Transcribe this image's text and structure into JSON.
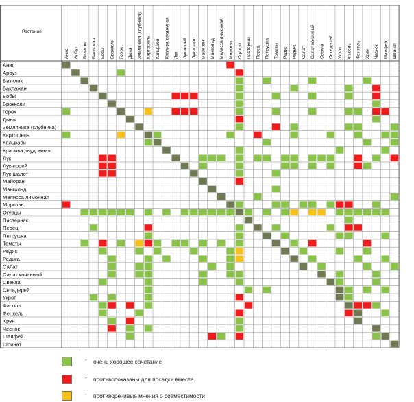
{
  "chart_data": {
    "type": "heatmap",
    "title": "Растения",
    "plants": [
      "Анис",
      "Арбуз",
      "Базилик",
      "Баклажан",
      "Бобы",
      "Брокколи",
      "Горох",
      "Дыня",
      "Земляника (клубника)",
      "Картофель",
      "Кольраби",
      "Крапива двудомная",
      "Лук",
      "Лук-порей",
      "Лук-шалот",
      "Майоран",
      "Мангольд",
      "Мелисса лимонная",
      "Морковь",
      "Огурцы",
      "Пастернак",
      "Перец",
      "Петрушка",
      "Томаты",
      "Редис",
      "Редька",
      "Салат",
      "Салат кочанный",
      "Свекла",
      "Сельдерей",
      "Укроп",
      "Фасоль",
      "Фенхель",
      "Хрен",
      "Чеснок",
      "Шалфей",
      "Шпинат"
    ],
    "cell_codes": {
      "G": "очень хорошее сочетание",
      "R": "противопоказаны для посадки вместе",
      "Y": "противоречивые мнения о совместимости",
      "D": "diagonal",
      ".": "no data"
    },
    "matrix": [
      "D.................R..................",
      ".D....G............R.................",
      "..D................G..G....G.....G...",
      "...D...............G.....G.....G..R..",
      "....D.......RRR....G...G...G...G..R..",
      ".....D.............G..............G..",
      "G.....D..Y..RRR....G...G...G...GG.RR.",
      ".......D...........R..............G..",
      "........D..........G...R.G.....GG...G",
      "G.....Y..DG.......G..R...G...G..G..GG",
      ".........GD...........G..........G..G",
      "...........D.......G..........G....G.",
      "....RR......D..GGG.G.GG.GG.GGG..R.G.R",
      "....RR.......D.G...G....GG.G.G..RG...",
      "....RR........D....G...G.............",
      "...............D...R.................",
      "................D......G.............",
      ".................D...G..............G",
      "R.................DG...GG.GG.GRR..G..",
      "..GGGGGG.G.G.GGGGGGDG.G.GY.YY.GGGGGG.",
      "....................D..........G.....",
      "...G.....R.........G.D.G.....G.RR....",
      ".........G.........G..D.G.....GG...G.",
      "..G.R.G.YRG.GG.G.G.G...D.G.R.....R...",
      "....G...G.G...G...GY....D.G...G..G...",
      ".....G...G.G...G..GY.....D.G....G..G.",
      ".....G..GG......G.G.......D.G....G..G",
      ".....G..GG.....G..GG........D.G...G..",
      "....G....G.....G...G.........DG...G..",
      ".........G..........G.G.......DG.G.G.",
      "...G.G...G.........R..........DG.....",
      "....GR.R.G..........R..........DRRG..",
      "....G...G..........R...........RD..G.",
      ".....G.R...........G............D....",
      ".....R.G.G.........G..............D..",
      ".......G........RG.R..............GD.",
      "....................................D"
    ],
    "legend": [
      {
        "code": "G",
        "label": "очень хорошее сочетание"
      },
      {
        "code": "R",
        "label": "противопоказаны для посадки вместе"
      },
      {
        "code": "Y",
        "label": "противоречивые мнения о совместимости"
      }
    ],
    "legend_dash": "-",
    "colors": {
      "G": "#8bc34a",
      "R": "#ee1c1c",
      "Y": "#f4c21b",
      "D": "#6f7a55",
      "grid": "#9e9e9e",
      "border": "#555555"
    }
  }
}
